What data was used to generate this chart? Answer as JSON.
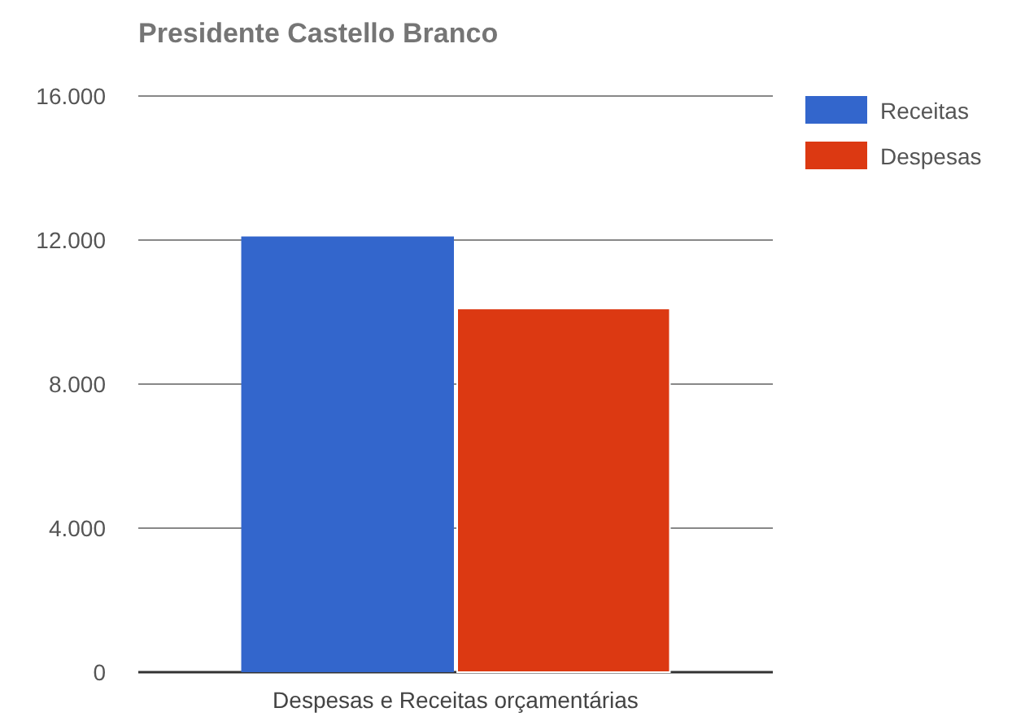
{
  "chart_data": {
    "type": "bar",
    "title": "Presidente Castello Branco",
    "categories": [
      "Despesas e Receitas orçamentárias"
    ],
    "series": [
      {
        "name": "Receitas",
        "color": "#3366cc",
        "values": [
          12100
        ]
      },
      {
        "name": "Despesas",
        "color": "#dc3912",
        "values": [
          10100
        ]
      }
    ],
    "ylim": [
      0,
      16000
    ],
    "yticks": [
      {
        "value": 0,
        "label": "0"
      },
      {
        "value": 4000,
        "label": "4.000"
      },
      {
        "value": 8000,
        "label": "8.000"
      },
      {
        "value": 12000,
        "label": "12.000"
      },
      {
        "value": 16000,
        "label": "16.000"
      }
    ],
    "grid": "y",
    "legend": "top right"
  }
}
